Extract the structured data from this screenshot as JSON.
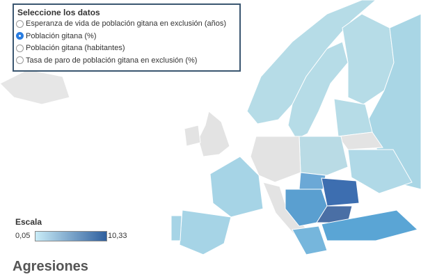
{
  "selector": {
    "title": "Seleccione los datos",
    "options": [
      "Esperanza de vida de población gitana en exclusión (años)",
      "Población gitana (%)",
      "Población gitana (habitantes)",
      "Tasa de paro de población gitana en exclusión (%)"
    ],
    "selected": 1
  },
  "scale": {
    "title": "Escala",
    "min": "0,05",
    "max": "10,33"
  },
  "heading": "Agresiones"
}
